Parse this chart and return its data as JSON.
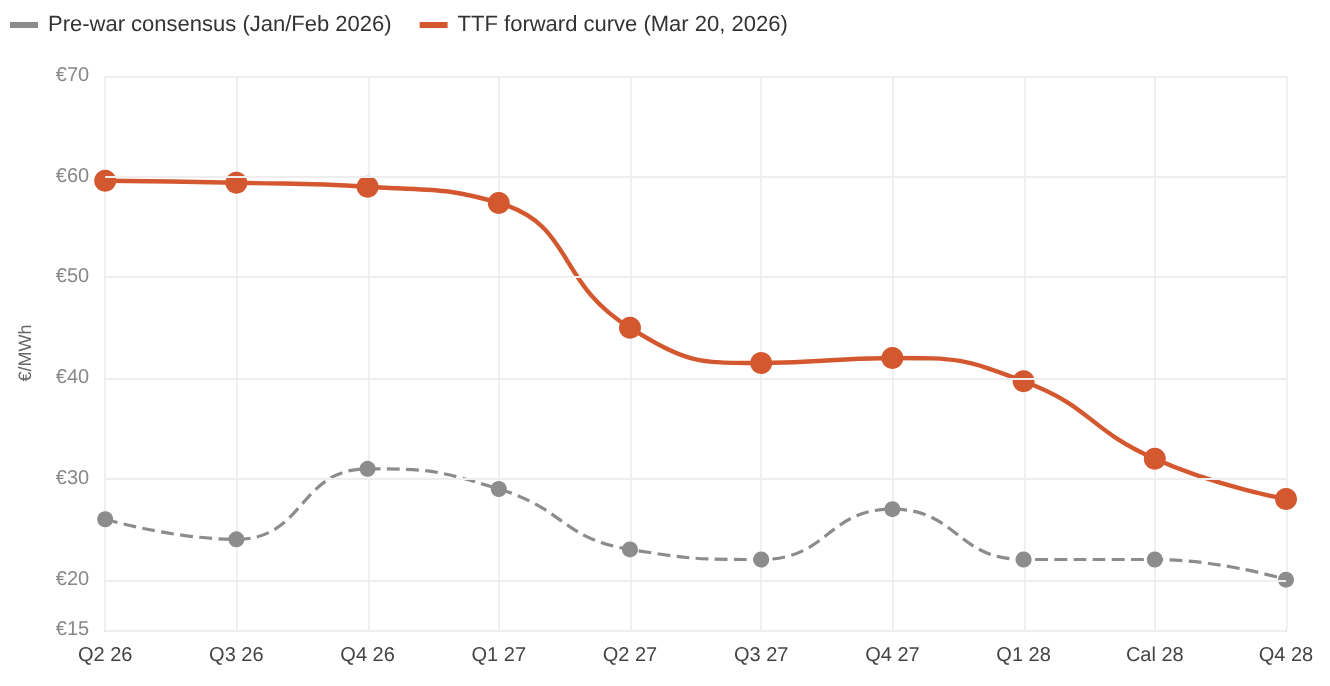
{
  "chart_data": {
    "type": "line",
    "ylabel": "€/MWh",
    "categories": [
      "Q2 26",
      "Q3 26",
      "Q4 26",
      "Q1 27",
      "Q2 27",
      "Q3 27",
      "Q4 27",
      "Q1 28",
      "Cal 28",
      "Q4 28"
    ],
    "series": [
      {
        "name": "Pre-war consensus (Jan/Feb 2026)",
        "color": "#8c8c8c",
        "line_style": "dashed",
        "values": [
          26,
          24,
          31,
          29,
          23,
          22,
          27,
          22,
          22,
          20
        ]
      },
      {
        "name": "TTF forward curve (Mar 20, 2026)",
        "color": "#d4582f",
        "line_style": "solid",
        "values": [
          59.6,
          59.4,
          59,
          57.4,
          45,
          41.5,
          42,
          39.7,
          32,
          28
        ]
      }
    ],
    "ylim": [
      15,
      70
    ],
    "yticks": [
      {
        "value": 15,
        "label": "€15"
      },
      {
        "value": 20,
        "label": "€20"
      },
      {
        "value": 30,
        "label": "€30"
      },
      {
        "value": 40,
        "label": "€40"
      },
      {
        "value": 50,
        "label": "€50"
      },
      {
        "value": 60,
        "label": "€60"
      },
      {
        "value": 70,
        "label": "€70"
      }
    ],
    "grid": true,
    "legend": "top left",
    "marker": "circle"
  }
}
